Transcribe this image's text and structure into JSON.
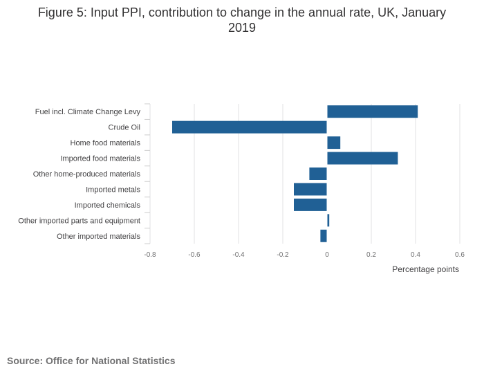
{
  "chart_data": {
    "type": "bar",
    "orientation": "horizontal",
    "title": "Figure 5: Input PPI, contribution to change in the annual rate, UK, January 2019",
    "title_lines": [
      "Figure 5: Input PPI, contribution to change in the annual rate, UK, January",
      "2019"
    ],
    "categories": [
      "Fuel incl. Climate Change Levy",
      "Crude Oil",
      "Home food materials",
      "Imported food materials",
      "Other home-produced materials",
      "Imported metals",
      "Imported chemicals",
      "Other imported parts and equipment",
      "Other imported materials"
    ],
    "values": [
      0.41,
      -0.7,
      0.06,
      0.32,
      -0.08,
      -0.15,
      -0.15,
      0.01,
      -0.03
    ],
    "xlim": [
      -0.8,
      0.6
    ],
    "xticks": [
      -0.8,
      -0.6,
      -0.4,
      -0.2,
      0,
      0.2,
      0.4,
      0.6
    ],
    "xtick_labels": [
      "-0.8",
      "-0.6",
      "-0.4",
      "-0.2",
      "0",
      "0.2",
      "0.4",
      "0.6"
    ],
    "xlabel": "Percentage points",
    "ylabel": "",
    "bar_color": "#206095",
    "grid": true
  },
  "footer": {
    "source": "Source: Office for National Statistics"
  }
}
